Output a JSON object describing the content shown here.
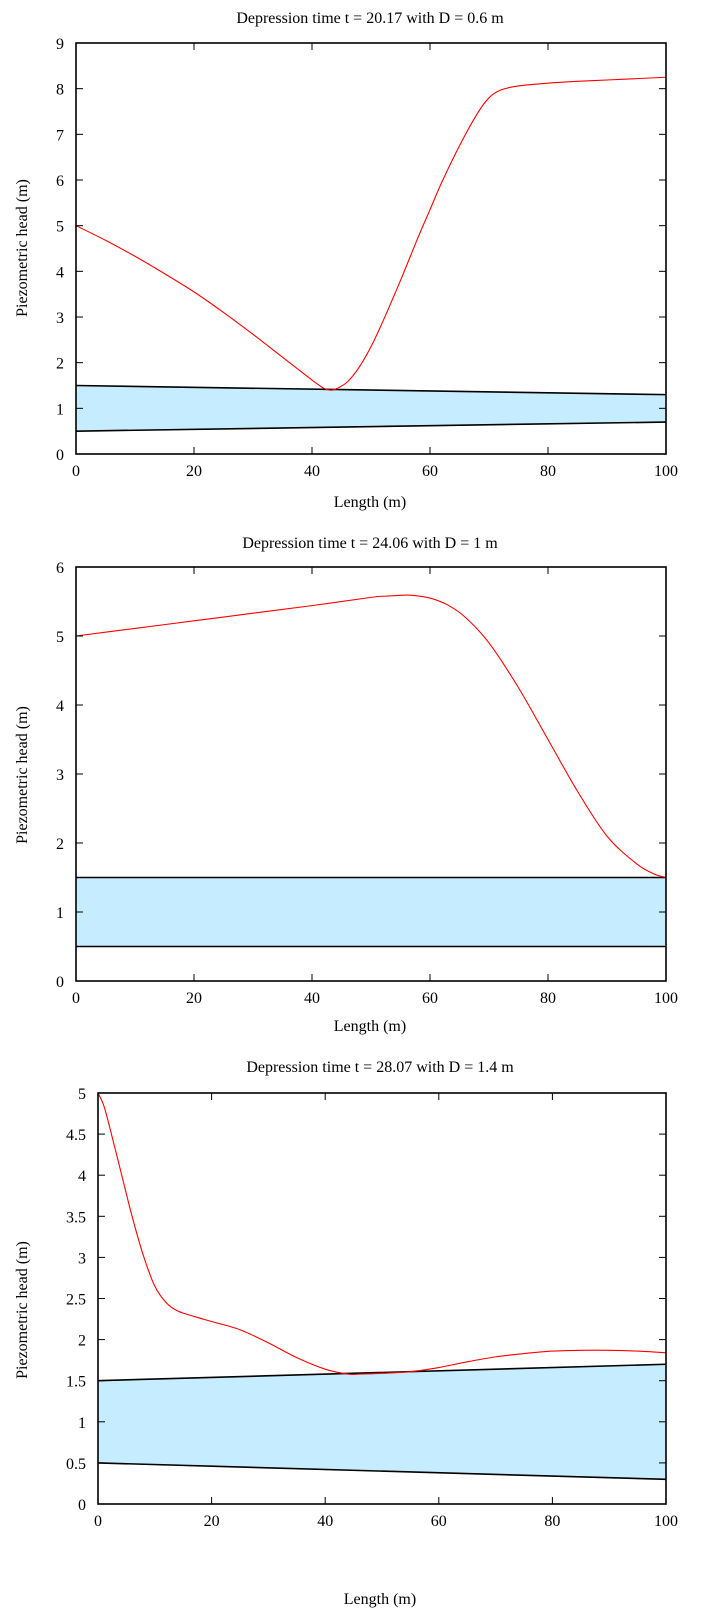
{
  "chart_data": [
    {
      "type": "line",
      "title": "Depression time t = 20.17 with D = 0.6 m",
      "xlabel": "Length (m)",
      "ylabel": "Piezometric head (m)",
      "xlim": [
        0,
        100
      ],
      "ylim": [
        0,
        9
      ],
      "xticks": [
        "0",
        "20",
        "40",
        "60",
        "80",
        "100"
      ],
      "yticks": [
        "0",
        "1",
        "2",
        "3",
        "4",
        "5",
        "6",
        "7",
        "8",
        "9"
      ],
      "colors": {
        "head": "#ff0000",
        "pipe_fill": "#c6ecff",
        "pipe_edge": "#000000"
      },
      "pipe": {
        "x": [
          0,
          100
        ],
        "top": [
          1.5,
          1.3
        ],
        "bottom": [
          0.5,
          0.7
        ]
      },
      "series": [
        {
          "x": [
            0,
            5,
            10,
            15,
            20,
            25,
            30,
            35,
            40,
            42,
            43,
            44,
            46,
            48,
            50,
            52,
            55,
            58,
            60,
            62,
            65,
            68,
            70,
            72,
            75,
            80,
            85,
            90,
            95,
            100
          ],
          "y": [
            5.0,
            4.68,
            4.33,
            3.95,
            3.55,
            3.1,
            2.62,
            2.12,
            1.62,
            1.44,
            1.4,
            1.42,
            1.58,
            1.9,
            2.35,
            2.9,
            3.8,
            4.75,
            5.35,
            5.95,
            6.75,
            7.45,
            7.8,
            7.97,
            8.06,
            8.12,
            8.16,
            8.19,
            8.22,
            8.25
          ]
        }
      ]
    },
    {
      "type": "line",
      "title": "Depression time t = 24.06 with D = 1 m",
      "xlabel": "Length (m)",
      "ylabel": "Piezometric head (m)",
      "xlim": [
        0,
        100
      ],
      "ylim": [
        0,
        6
      ],
      "xticks": [
        "0",
        "20",
        "40",
        "60",
        "80",
        "100"
      ],
      "yticks": [
        "0",
        "1",
        "2",
        "3",
        "4",
        "5",
        "6"
      ],
      "colors": {
        "head": "#ff0000",
        "pipe_fill": "#c6ecff",
        "pipe_edge": "#000000"
      },
      "pipe": {
        "x": [
          0,
          100
        ],
        "top": [
          1.5,
          1.5
        ],
        "bottom": [
          0.5,
          0.5
        ]
      },
      "series": [
        {
          "x": [
            0,
            10,
            20,
            30,
            40,
            50,
            53,
            55,
            57,
            60,
            63,
            66,
            70,
            75,
            80,
            85,
            90,
            95,
            98,
            100
          ],
          "y": [
            5.0,
            5.11,
            5.22,
            5.33,
            5.44,
            5.56,
            5.58,
            5.59,
            5.59,
            5.55,
            5.45,
            5.27,
            4.9,
            4.25,
            3.5,
            2.75,
            2.1,
            1.7,
            1.55,
            1.5
          ]
        }
      ]
    },
    {
      "type": "line",
      "title": "Depression time t = 28.07 with D = 1.4 m",
      "xlabel": "Length (m)",
      "ylabel": "Piezometric head (m)",
      "xlim": [
        0,
        100
      ],
      "ylim": [
        0,
        5
      ],
      "xticks": [
        "0",
        "20",
        "40",
        "60",
        "80",
        "100"
      ],
      "yticks": [
        "0",
        "0.5",
        "1",
        "1.5",
        "2",
        "2.5",
        "3",
        "3.5",
        "4",
        "4.5",
        "5"
      ],
      "colors": {
        "head": "#ff0000",
        "pipe_fill": "#c6ecff",
        "pipe_edge": "#000000"
      },
      "pipe": {
        "x": [
          0,
          100
        ],
        "top": [
          1.5,
          1.7
        ],
        "bottom": [
          0.5,
          0.3
        ]
      },
      "series": [
        {
          "x": [
            0,
            1,
            2,
            4,
            6,
            8,
            10,
            12,
            14,
            17,
            20,
            25,
            30,
            35,
            40,
            44,
            46,
            50,
            55,
            60,
            65,
            70,
            75,
            80,
            85,
            90,
            95,
            100
          ],
          "y": [
            5.0,
            4.85,
            4.6,
            4.05,
            3.5,
            3.02,
            2.65,
            2.45,
            2.35,
            2.28,
            2.22,
            2.12,
            1.96,
            1.78,
            1.64,
            1.58,
            1.58,
            1.59,
            1.61,
            1.66,
            1.73,
            1.79,
            1.83,
            1.86,
            1.87,
            1.87,
            1.86,
            1.84
          ]
        }
      ]
    }
  ]
}
